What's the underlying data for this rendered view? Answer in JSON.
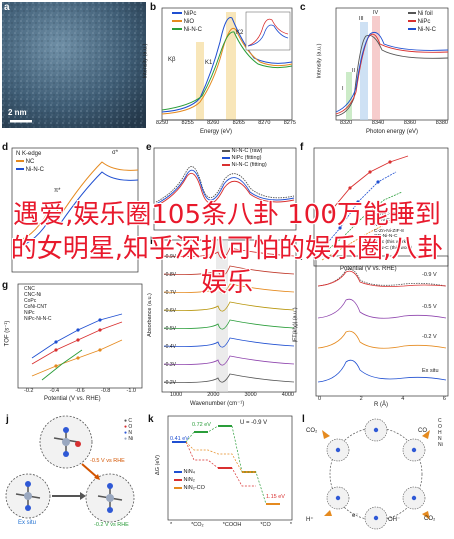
{
  "overlay_text": "遇爱,娱乐圈105条八卦 100万能睡到的女明星,知乎深扒可怕的娱乐圈,八卦娱乐",
  "panel_a": {
    "label": "a",
    "scale_bar": "2 nm"
  },
  "panel_b": {
    "label": "b",
    "legend": [
      "NiPc",
      "NiO",
      "Ni-N-C"
    ],
    "peaks": [
      "Kβ",
      "K1",
      "K2"
    ],
    "xticks": [
      "8250",
      "8255",
      "8260",
      "8265",
      "8270",
      "8275"
    ],
    "xlabel": "Energy (eV)",
    "ylabel": "Intensity (a.u.)",
    "inset_x": "Energy (eV)"
  },
  "panel_c": {
    "label": "c",
    "legend": [
      "Ni foil",
      "NiPc",
      "Ni-N-C"
    ],
    "peaks": [
      "I",
      "II",
      "III",
      "IV"
    ],
    "xticks": [
      "8320",
      "8340",
      "8360",
      "8380"
    ],
    "xlabel": "Photon energy (eV)",
    "ylabel": "Intensity (a.u.)"
  },
  "panel_d": {
    "label": "d",
    "legend": [
      "N K-edge",
      "NC",
      "Ni-N-C"
    ],
    "peaks": [
      "π*",
      "σ*"
    ]
  },
  "panel_e": {
    "label": "e",
    "legend": [
      "Ni-N-C (raw)",
      "NiPc (fitting)",
      "Ni-N-C (fitting)"
    ]
  },
  "panel_f": {
    "label": "f",
    "legend": [
      "Ni-N-C",
      "A-Ni/NGD",
      "NiN-GS",
      "Ni-N-C-100",
      "Fe-N-C",
      "Ni SA",
      "C-Zn-Ni-ZIF-8",
      "OD-Ni-N-C",
      "NiPc (this work)",
      "Ni-N-C (this work)"
    ],
    "xlabel": "Potential (V vs. RHE)"
  },
  "panel_g": {
    "label": "g",
    "legend": [
      "CNC",
      "CNC-Ni",
      "CoPc",
      "CoNi-CNT",
      "NiPc",
      "NiPc-Ni-N-C"
    ],
    "ylabel": "TOF (s⁻¹)",
    "xticks": [
      "-0.2",
      "-0.4",
      "-0.6",
      "-0.8",
      "-1.0"
    ],
    "xlabel": "Potential (V vs. RHE)"
  },
  "panel_h": {
    "label": "h",
    "traces": [
      "-0.9V",
      "-0.8V",
      "-0.7V",
      "-0.6V",
      "-0.5V",
      "-0.4V",
      "-0.3V",
      "-0.2V"
    ],
    "xticks": [
      "1000",
      "2000",
      "3000",
      "4000"
    ],
    "xlabel": "Wavenumber (cm⁻¹)",
    "ylabel": "Absorbance (a.u.)"
  },
  "panel_i": {
    "label": "i",
    "traces": [
      "-0.9 V",
      "-0.5 V",
      "-0.2 V",
      "Ex situ"
    ],
    "xticks": [
      "0",
      "2",
      "4",
      "6"
    ],
    "xlabel": "R (Å)",
    "ylabel": "|FT(k³χ)| (a.u.)"
  },
  "panel_j": {
    "label": "j",
    "legend": [
      "C",
      "O",
      "N",
      "Ni"
    ],
    "labels": [
      "Ex situ",
      "-0.5 V vs RHE",
      "-0.2 V vs RHE"
    ]
  },
  "panel_k": {
    "label": "k",
    "legend": [
      "NiN₄",
      "NiN₂",
      "NiN₂-CO"
    ],
    "labels": [
      "U = -0.9 V",
      "0.41 eV",
      "0.72 eV",
      "1.15 eV"
    ],
    "xticks": [
      "*",
      "*CO₂",
      "*COOH",
      "*CO",
      "*"
    ],
    "ylabel": "ΔG (eV)"
  },
  "panel_l": {
    "label": "l",
    "legend": [
      "C",
      "O",
      "H",
      "N",
      "Ni"
    ],
    "labels": [
      "CO₂",
      "CO",
      "H⁺",
      "e⁻",
      "OH⁻",
      "CO₂"
    ]
  },
  "colors": {
    "accent_red": "#e8192c",
    "blue": "#1f4fd1",
    "red": "#d93030",
    "orange": "#e58a1f",
    "green": "#2a9d3a"
  }
}
